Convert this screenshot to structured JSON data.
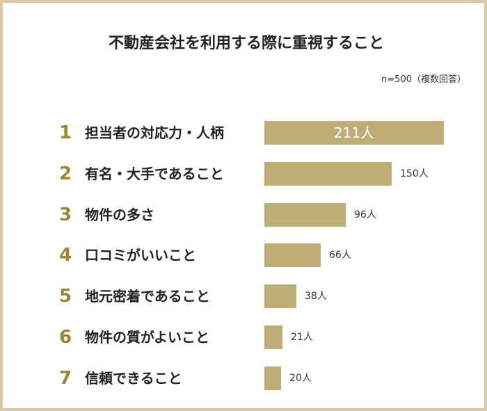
{
  "title": "不動産会社を利用する際に重視すること",
  "note": "n=500（複数回答）",
  "colors": {
    "bar": "#bfad76",
    "rank": "#9a8733",
    "frame": "#d9c7a6"
  },
  "chart_data": {
    "type": "bar",
    "orientation": "horizontal",
    "title": "不動産会社を利用する際に重視すること",
    "unit": "人",
    "xlim": [
      0,
      211
    ],
    "grid": false,
    "categories": [
      "担当者の対応力・人柄",
      "有名・大手であること",
      "物件の多さ",
      "口コミがいいこと",
      "地元密着であること",
      "物件の質がよいこと",
      "信頼できること"
    ],
    "ranks": [
      "1",
      "2",
      "3",
      "4",
      "5",
      "6",
      "7"
    ],
    "values": [
      211,
      150,
      96,
      66,
      38,
      21,
      20
    ],
    "value_labels": [
      "211人",
      "150人",
      "96人",
      "66人",
      "38人",
      "21人",
      "20人"
    ]
  }
}
